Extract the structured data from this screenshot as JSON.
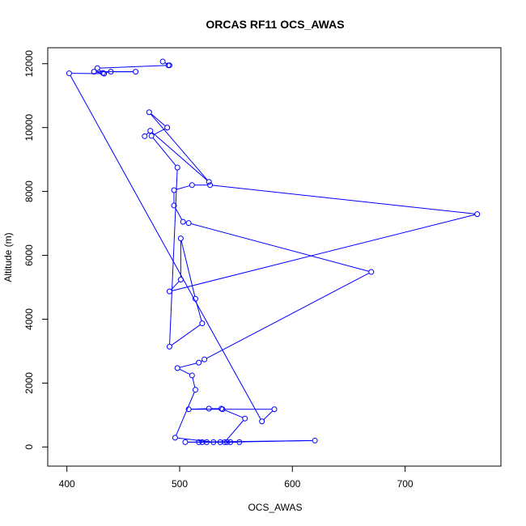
{
  "chart_data": {
    "type": "line",
    "title": "ORCAS RF11 OCS_AWAS",
    "xlabel": "OCS_AWAS",
    "ylabel": "Altitude (m)",
    "xlim": [
      400,
      770
    ],
    "ylim": [
      0,
      12300
    ],
    "xticks": [
      400,
      500,
      600,
      700
    ],
    "yticks": [
      0,
      2000,
      4000,
      6000,
      8000,
      10000,
      12000
    ],
    "grid": false,
    "series": [
      {
        "color": "#0000ff",
        "marker": "open-circle",
        "points": [
          [
            485,
            12070
          ],
          [
            491,
            11950
          ],
          [
            490,
            11950
          ],
          [
            427,
            11860
          ],
          [
            432,
            11710
          ],
          [
            439,
            11750
          ],
          [
            461,
            11750
          ],
          [
            424,
            11750
          ],
          [
            433,
            11690
          ],
          [
            402,
            11700
          ],
          [
            573,
            800
          ],
          [
            584,
            1180
          ],
          [
            538,
            1180
          ],
          [
            508,
            1180
          ],
          [
            526,
            1200
          ],
          [
            537,
            1200
          ],
          [
            558,
            890
          ],
          [
            540,
            150
          ],
          [
            620,
            200
          ],
          [
            505,
            150
          ],
          [
            524,
            150
          ],
          [
            553,
            150
          ],
          [
            542,
            150
          ],
          [
            517,
            150
          ],
          [
            536,
            150
          ],
          [
            545,
            150
          ],
          [
            520,
            150
          ],
          [
            530,
            150
          ],
          [
            496,
            290
          ],
          [
            514,
            1790
          ],
          [
            511,
            2240
          ],
          [
            498,
            2470
          ],
          [
            517,
            2640
          ],
          [
            522,
            2740
          ],
          [
            670,
            5480
          ],
          [
            508,
            7010
          ],
          [
            503,
            7050
          ],
          [
            495,
            7560
          ],
          [
            495,
            8040
          ],
          [
            511,
            8200
          ],
          [
            527,
            8200
          ],
          [
            764,
            7290
          ],
          [
            491,
            4870
          ],
          [
            501,
            5240
          ],
          [
            501,
            6530
          ],
          [
            514,
            4640
          ],
          [
            520,
            3870
          ],
          [
            491,
            3140
          ],
          [
            498,
            8750
          ],
          [
            475,
            9740
          ],
          [
            489,
            10000
          ],
          [
            473,
            10480
          ],
          [
            526,
            8300
          ],
          [
            474,
            9900
          ],
          [
            469,
            9730
          ]
        ]
      }
    ]
  }
}
